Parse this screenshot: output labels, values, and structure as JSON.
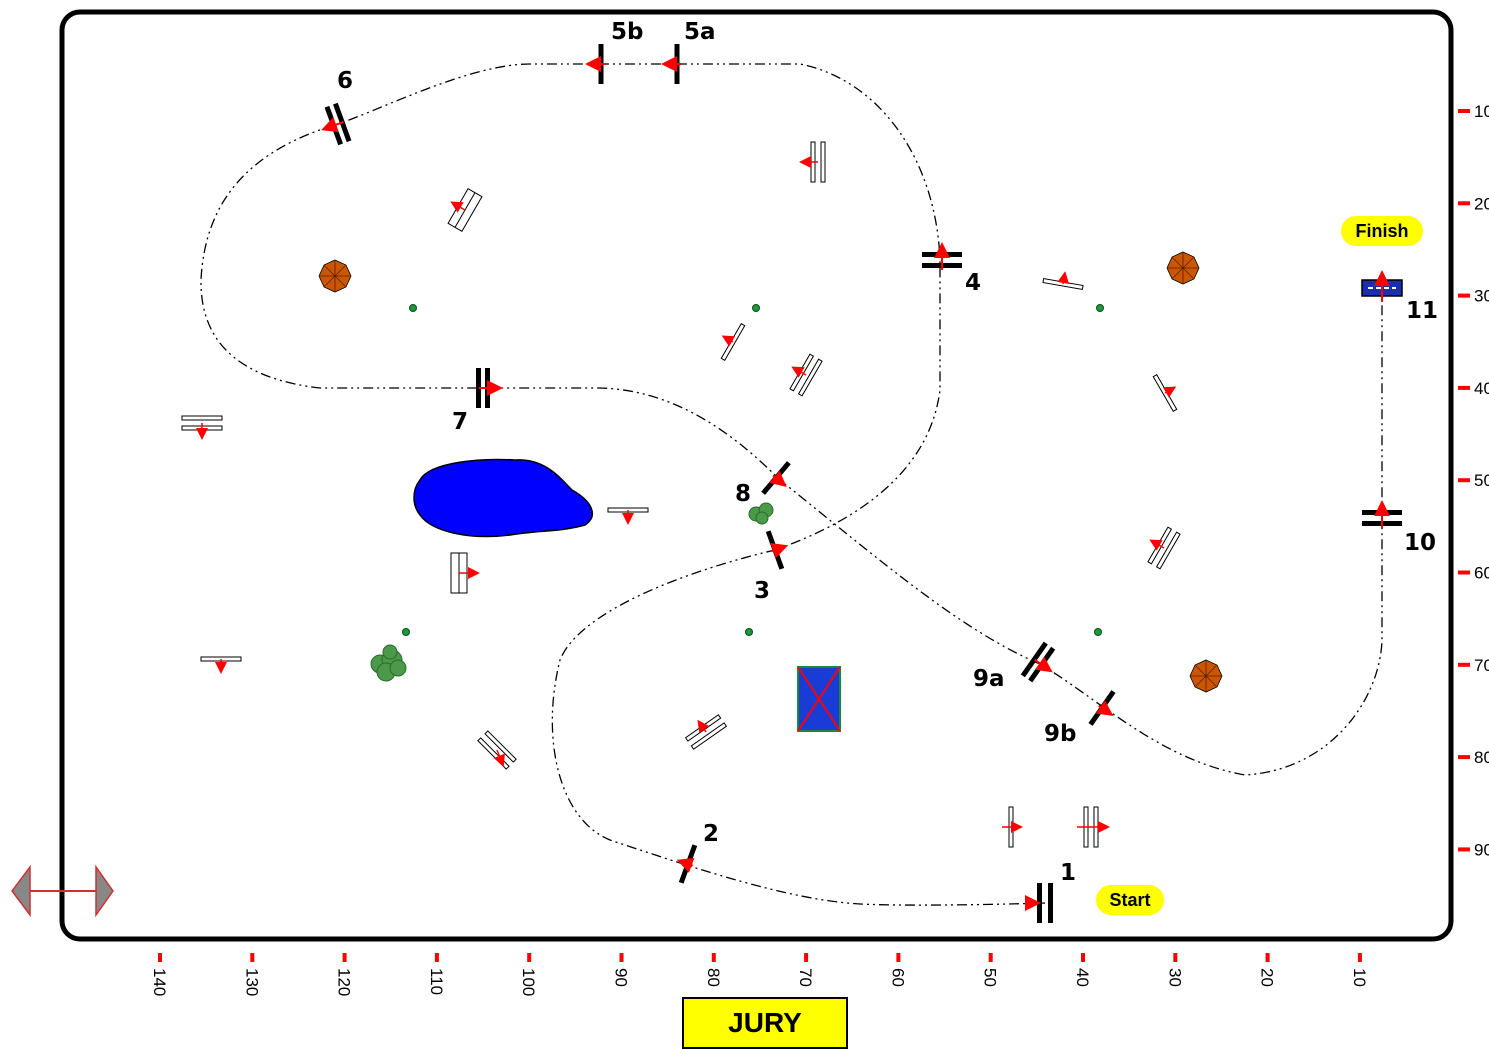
{
  "title": "",
  "jury": "JURY",
  "start_label": "Start",
  "finish_label": "Finish",
  "colors": {
    "arena_border": "#000000",
    "marker": "#ff0000",
    "badge": "#ffff00",
    "water": "#0000ff",
    "tree": "#cc5500",
    "bush": "#4a9a4a",
    "dot": "#1a9a3a",
    "finish_rail": "#1a2fb0",
    "box_fill": "#1a3cd6",
    "box_border": "#1a8a3a"
  },
  "scale_bottom": [
    "140",
    "130",
    "120",
    "110",
    "100",
    "90",
    "80",
    "70",
    "60",
    "50",
    "40",
    "30",
    "20",
    "10"
  ],
  "scale_right": [
    "10",
    "20",
    "30",
    "40",
    "50",
    "60",
    "70",
    "80",
    "90"
  ],
  "fence_labels": [
    "1",
    "2",
    "3",
    "4",
    "5a",
    "5b",
    "6",
    "7",
    "8",
    "9a",
    "9b",
    "10",
    "11"
  ],
  "icons": {
    "resize": "double-arrow-icon",
    "tree": "tree-icon",
    "bush": "bush-icon",
    "pond": "pond-icon"
  }
}
